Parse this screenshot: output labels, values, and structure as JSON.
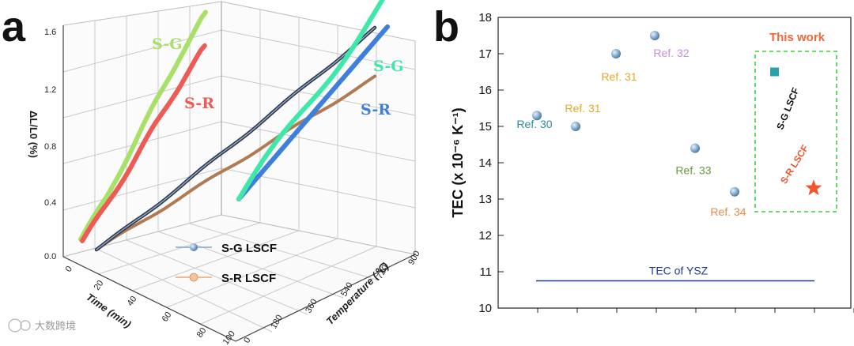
{
  "panel_a": {
    "letter": "a",
    "legend": [
      {
        "label": "S-G LSCF",
        "color": "#7fa6c9"
      },
      {
        "label": "S-R LSCF",
        "color": "#e8a77a"
      }
    ],
    "curve_labels": {
      "sg": "S-G",
      "sr": "S-R"
    },
    "colors": {
      "sg_front": "#a8e06a",
      "sr_front": "#ee5a55",
      "sg_right": "#3ee8a8",
      "sr_right": "#3f7fdc",
      "sg_mid": "#2c3e5a",
      "sr_mid": "#b07a52"
    }
  },
  "panel_b": {
    "letter": "b",
    "this_work_label": "This work",
    "ysz_label": "TEC of YSZ",
    "colors": {
      "refs": "#7ea8cc",
      "sg": "#2aa1a8",
      "sr": "#f0552d",
      "box": "#3ecf3e",
      "ysz": "#1f3a8a",
      "this_work": "#f0663a"
    }
  },
  "chart_data": [
    {
      "type": "line",
      "title": "",
      "subplot": "a",
      "ylabel": "ΔL/L0 (%)",
      "xlabel": "Time (min)",
      "zlabel": "Temperature (℃)",
      "yticks": [
        "0.0",
        "0.4",
        "0.8",
        "1.2",
        "1.6"
      ],
      "ylim": [
        0,
        1.6
      ],
      "xticks": [
        "0",
        "20",
        "40",
        "60",
        "80",
        "100"
      ],
      "xlim": [
        0,
        100
      ],
      "zticks": [
        "0",
        "180",
        "360",
        "540",
        "720",
        "900"
      ],
      "zlim": [
        0,
        900
      ],
      "series": [
        {
          "name": "S-G LSCF",
          "x_time": [
            0,
            20,
            40,
            60,
            80,
            100
          ],
          "y_strain": [
            0.05,
            0.33,
            0.66,
            1.0,
            1.32,
            1.62
          ]
        },
        {
          "name": "S-R LSCF",
          "x_time": [
            0,
            20,
            40,
            60,
            80,
            100
          ],
          "y_strain": [
            0.05,
            0.3,
            0.57,
            0.86,
            1.13,
            1.4
          ]
        }
      ]
    },
    {
      "type": "scatter",
      "subplot": "b",
      "title": "",
      "ylabel": "TEC (x 10⁻⁶ K⁻¹)",
      "ylim": [
        10,
        18
      ],
      "yticks": [
        "10",
        "11",
        "12",
        "13",
        "14",
        "15",
        "16",
        "17",
        "18"
      ],
      "points": [
        {
          "label": "Ref. 30",
          "value": 15.3,
          "color": "#2e8a9e"
        },
        {
          "label": "Ref. 31",
          "value": 15.0,
          "color": "#e8a824"
        },
        {
          "label": "Ref. 31",
          "value": 17.0,
          "color": "#e8a824"
        },
        {
          "label": "Ref. 32",
          "value": 17.5,
          "color": "#c98ce0"
        },
        {
          "label": "Ref. 33",
          "value": 14.4,
          "color": "#6a9a3a"
        },
        {
          "label": "Ref. 34",
          "value": 13.2,
          "color": "#e88a4a"
        },
        {
          "label": "S-G LSCF",
          "value": 16.5,
          "color": "#111111"
        },
        {
          "label": "S-R LSCF",
          "value": 13.3,
          "color": "#f0552d"
        }
      ],
      "reference_line": {
        "label": "TEC of YSZ",
        "value": 10.75
      }
    }
  ],
  "watermark": "大数跨境"
}
